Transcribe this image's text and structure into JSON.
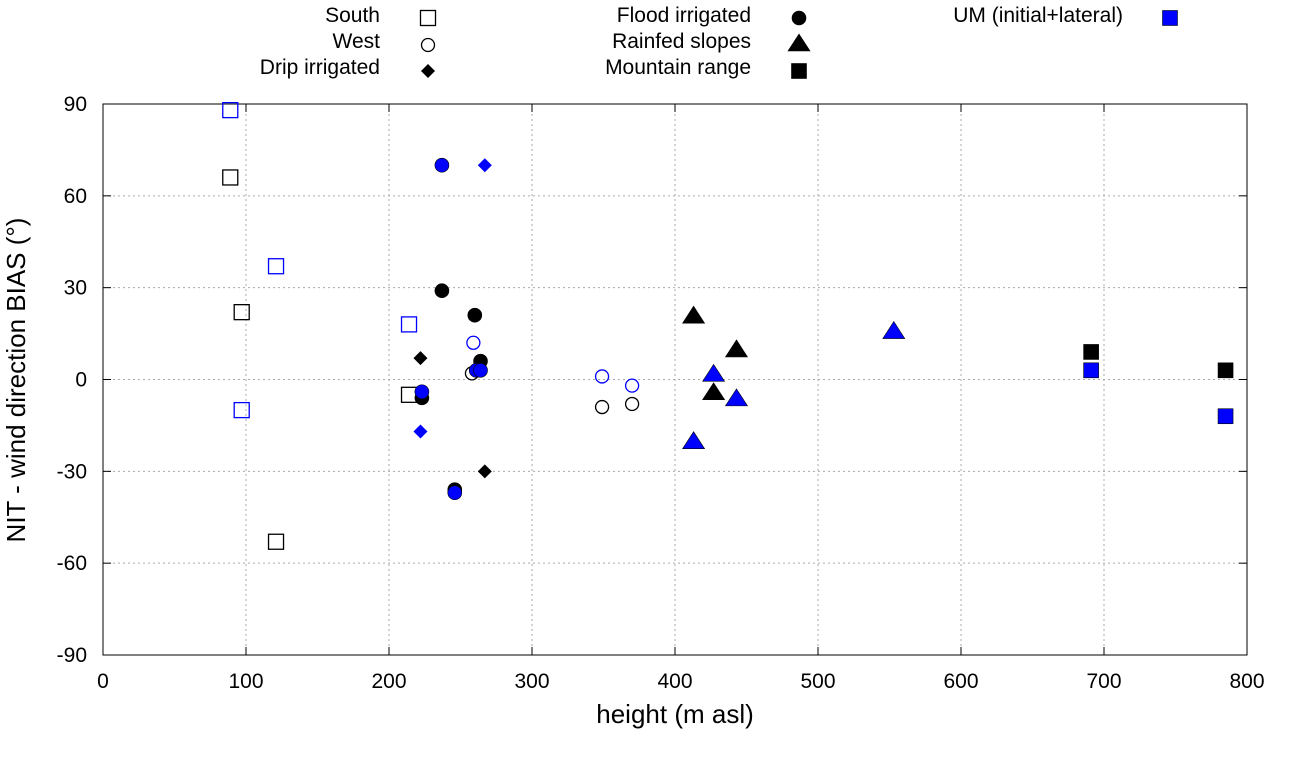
{
  "chart_data": {
    "type": "scatter",
    "xlabel": "height (m asl)",
    "ylabel": "NIT - wind direction BIAS (°)",
    "xlim": [
      0,
      800
    ],
    "ylim": [
      -90,
      90
    ],
    "xticks": [
      0,
      100,
      200,
      300,
      400,
      500,
      600,
      700,
      800
    ],
    "yticks": [
      -90,
      -60,
      -30,
      0,
      30,
      60,
      90
    ],
    "xtick_labels": [
      "0",
      "100",
      "200",
      "300",
      "400",
      "500",
      "600",
      "700",
      "800"
    ],
    "ytick_labels": [
      "-90",
      "-60",
      "-30",
      "0",
      "30",
      "60",
      "90"
    ],
    "grid": true,
    "colors": {
      "nit": "#000000",
      "um": "#0000ff",
      "grid": "#aaaaaa"
    },
    "legend": [
      {
        "label": "South",
        "marker": "square-open",
        "color": "#000000"
      },
      {
        "label": "West",
        "marker": "circle-open",
        "color": "#000000"
      },
      {
        "label": "Drip irrigated",
        "marker": "diamond",
        "color": "#000000"
      },
      {
        "label": "Flood irrigated",
        "marker": "circle",
        "color": "#000000"
      },
      {
        "label": "Rainfed slopes",
        "marker": "triangle",
        "color": "#000000"
      },
      {
        "label": "Mountain range",
        "marker": "square",
        "color": "#000000"
      },
      {
        "label": "UM (initial+lateral)",
        "marker": "square",
        "color": "#0000ff"
      }
    ],
    "series": [
      {
        "name": "South",
        "model": "NIT",
        "marker": "square-open",
        "color": "#000000",
        "points": [
          [
            89,
            66
          ],
          [
            97,
            22
          ],
          [
            121,
            -53
          ],
          [
            214,
            -5
          ]
        ]
      },
      {
        "name": "South",
        "model": "UM",
        "marker": "square-open",
        "color": "#0000ff",
        "points": [
          [
            89,
            88
          ],
          [
            97,
            -10
          ],
          [
            121,
            37
          ],
          [
            214,
            18
          ]
        ]
      },
      {
        "name": "West",
        "model": "NIT",
        "marker": "circle-open",
        "color": "#000000",
        "points": [
          [
            258,
            2
          ],
          [
            349,
            -9
          ],
          [
            370,
            -8
          ]
        ]
      },
      {
        "name": "West",
        "model": "UM",
        "marker": "circle-open",
        "color": "#0000ff",
        "points": [
          [
            259,
            12
          ],
          [
            349,
            1
          ],
          [
            370,
            -2
          ]
        ]
      },
      {
        "name": "Drip irrigated",
        "model": "NIT",
        "marker": "diamond",
        "color": "#000000",
        "points": [
          [
            222,
            7
          ],
          [
            267,
            -30
          ]
        ]
      },
      {
        "name": "Drip irrigated",
        "model": "UM",
        "marker": "diamond",
        "color": "#0000ff",
        "points": [
          [
            222,
            -17
          ],
          [
            267,
            70
          ]
        ]
      },
      {
        "name": "Flood irrigated",
        "model": "NIT",
        "marker": "circle",
        "color": "#000000",
        "points": [
          [
            237,
            29
          ],
          [
            246,
            -36
          ],
          [
            260,
            21
          ],
          [
            264,
            6
          ],
          [
            223,
            -6
          ]
        ]
      },
      {
        "name": "Flood irrigated",
        "model": "UM",
        "marker": "circle",
        "color": "#0000ff",
        "points": [
          [
            237,
            70
          ],
          [
            246,
            -37
          ],
          [
            261,
            3
          ],
          [
            264,
            3
          ],
          [
            223,
            -4
          ]
        ]
      },
      {
        "name": "Rainfed slopes",
        "model": "NIT",
        "marker": "triangle",
        "color": "#000000",
        "points": [
          [
            413,
            21
          ],
          [
            427,
            -4
          ],
          [
            443,
            10
          ]
        ]
      },
      {
        "name": "Rainfed slopes",
        "model": "UM",
        "marker": "triangle",
        "color": "#0000ff",
        "points": [
          [
            413,
            -20
          ],
          [
            427,
            2
          ],
          [
            443,
            -6
          ],
          [
            553,
            16
          ]
        ]
      },
      {
        "name": "Mountain range",
        "model": "NIT",
        "marker": "square",
        "color": "#000000",
        "points": [
          [
            691,
            9
          ],
          [
            785,
            3
          ]
        ]
      },
      {
        "name": "Mountain range",
        "model": "UM",
        "marker": "square",
        "color": "#0000ff",
        "points": [
          [
            691,
            3
          ],
          [
            785,
            -12
          ]
        ]
      }
    ]
  }
}
